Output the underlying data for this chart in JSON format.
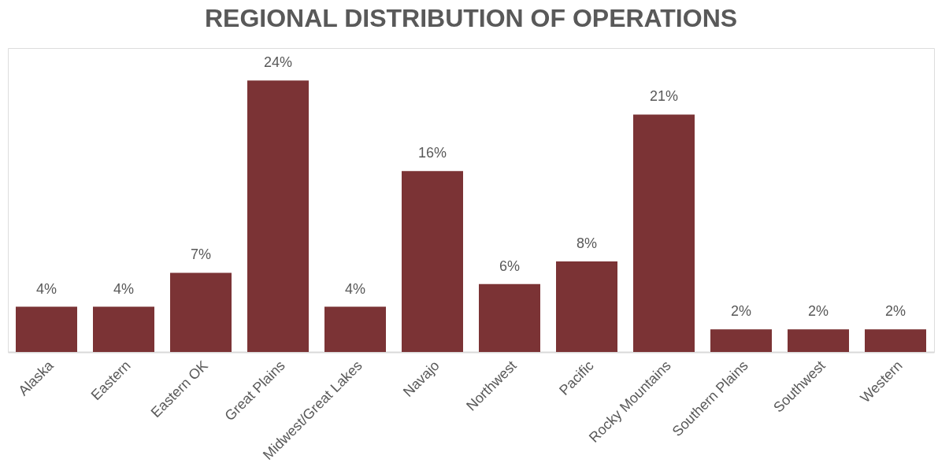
{
  "chart_data": {
    "type": "bar",
    "title": "REGIONAL DISTRIBUTION OF OPERATIONS",
    "categories": [
      "Alaska",
      "Eastern",
      "Eastern OK",
      "Great Plains",
      "Midwest/Great Lakes",
      "Navajo",
      "Northwest",
      "Pacific",
      "Rocky Mountains",
      "Southern Plains",
      "Southwest",
      "Western"
    ],
    "values": [
      4,
      4,
      7,
      24,
      4,
      16,
      6,
      8,
      21,
      2,
      2,
      2
    ],
    "value_labels": [
      "4%",
      "4%",
      "7%",
      "24%",
      "4%",
      "16%",
      "6%",
      "8%",
      "21%",
      "2%",
      "2%",
      "2%"
    ],
    "color": "#7b3335"
  }
}
